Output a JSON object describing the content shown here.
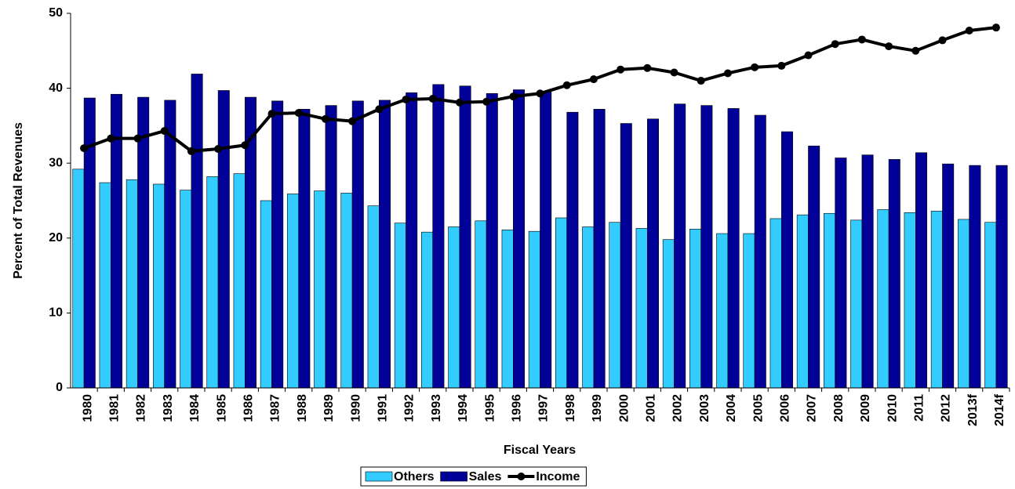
{
  "chart_data": {
    "type": "bar",
    "x_label": "Fiscal Years",
    "y_label": "Percent of Total Revenues",
    "categories": [
      "1980",
      "1981",
      "1982",
      "1983",
      "1984",
      "1985",
      "1986",
      "1987",
      "1988",
      "1989",
      "1990",
      "1991",
      "1992",
      "1993",
      "1994",
      "1995",
      "1996",
      "1997",
      "1998",
      "1999",
      "2000",
      "2001",
      "2002",
      "2003",
      "2004",
      "2005",
      "2006",
      "2007",
      "2008",
      "2009",
      "2010",
      "2011",
      "2012",
      "2013f",
      "2014f"
    ],
    "series": [
      {
        "name": "Others",
        "type": "bar",
        "color": "#33ccff",
        "values": [
          29.2,
          27.4,
          27.8,
          27.2,
          26.4,
          28.2,
          28.6,
          25.0,
          25.9,
          26.3,
          26.0,
          24.3,
          22.0,
          20.8,
          21.5,
          22.3,
          21.1,
          20.9,
          22.7,
          21.5,
          22.1,
          21.3,
          19.8,
          21.2,
          20.6,
          20.6,
          22.6,
          23.1,
          23.3,
          22.4,
          23.8,
          23.4,
          23.6,
          22.5,
          22.1
        ]
      },
      {
        "name": "Sales",
        "type": "bar",
        "color": "#000099",
        "values": [
          38.7,
          39.2,
          38.8,
          38.4,
          41.9,
          39.7,
          38.8,
          38.3,
          37.2,
          37.7,
          38.3,
          38.4,
          39.4,
          40.5,
          40.3,
          39.3,
          39.8,
          39.6,
          36.8,
          37.2,
          35.3,
          35.9,
          37.9,
          37.7,
          37.3,
          36.4,
          34.2,
          32.3,
          30.7,
          31.1,
          30.5,
          31.4,
          29.9,
          29.7,
          29.7
        ]
      },
      {
        "name": "Income",
        "type": "line",
        "color": "#000000",
        "values": [
          32.0,
          33.3,
          33.3,
          34.3,
          31.6,
          31.9,
          32.4,
          36.6,
          36.7,
          35.9,
          35.6,
          37.2,
          38.5,
          38.6,
          38.1,
          38.2,
          38.9,
          39.3,
          40.4,
          41.2,
          42.5,
          42.7,
          42.1,
          41.0,
          42.0,
          42.8,
          43.0,
          44.4,
          45.9,
          46.5,
          45.6,
          45.0,
          46.4,
          47.7,
          48.1
        ]
      }
    ],
    "ylim": [
      0,
      50
    ],
    "yticks": [
      0,
      10,
      20,
      30,
      40,
      50
    ],
    "grid": false,
    "legend": "bottom"
  }
}
